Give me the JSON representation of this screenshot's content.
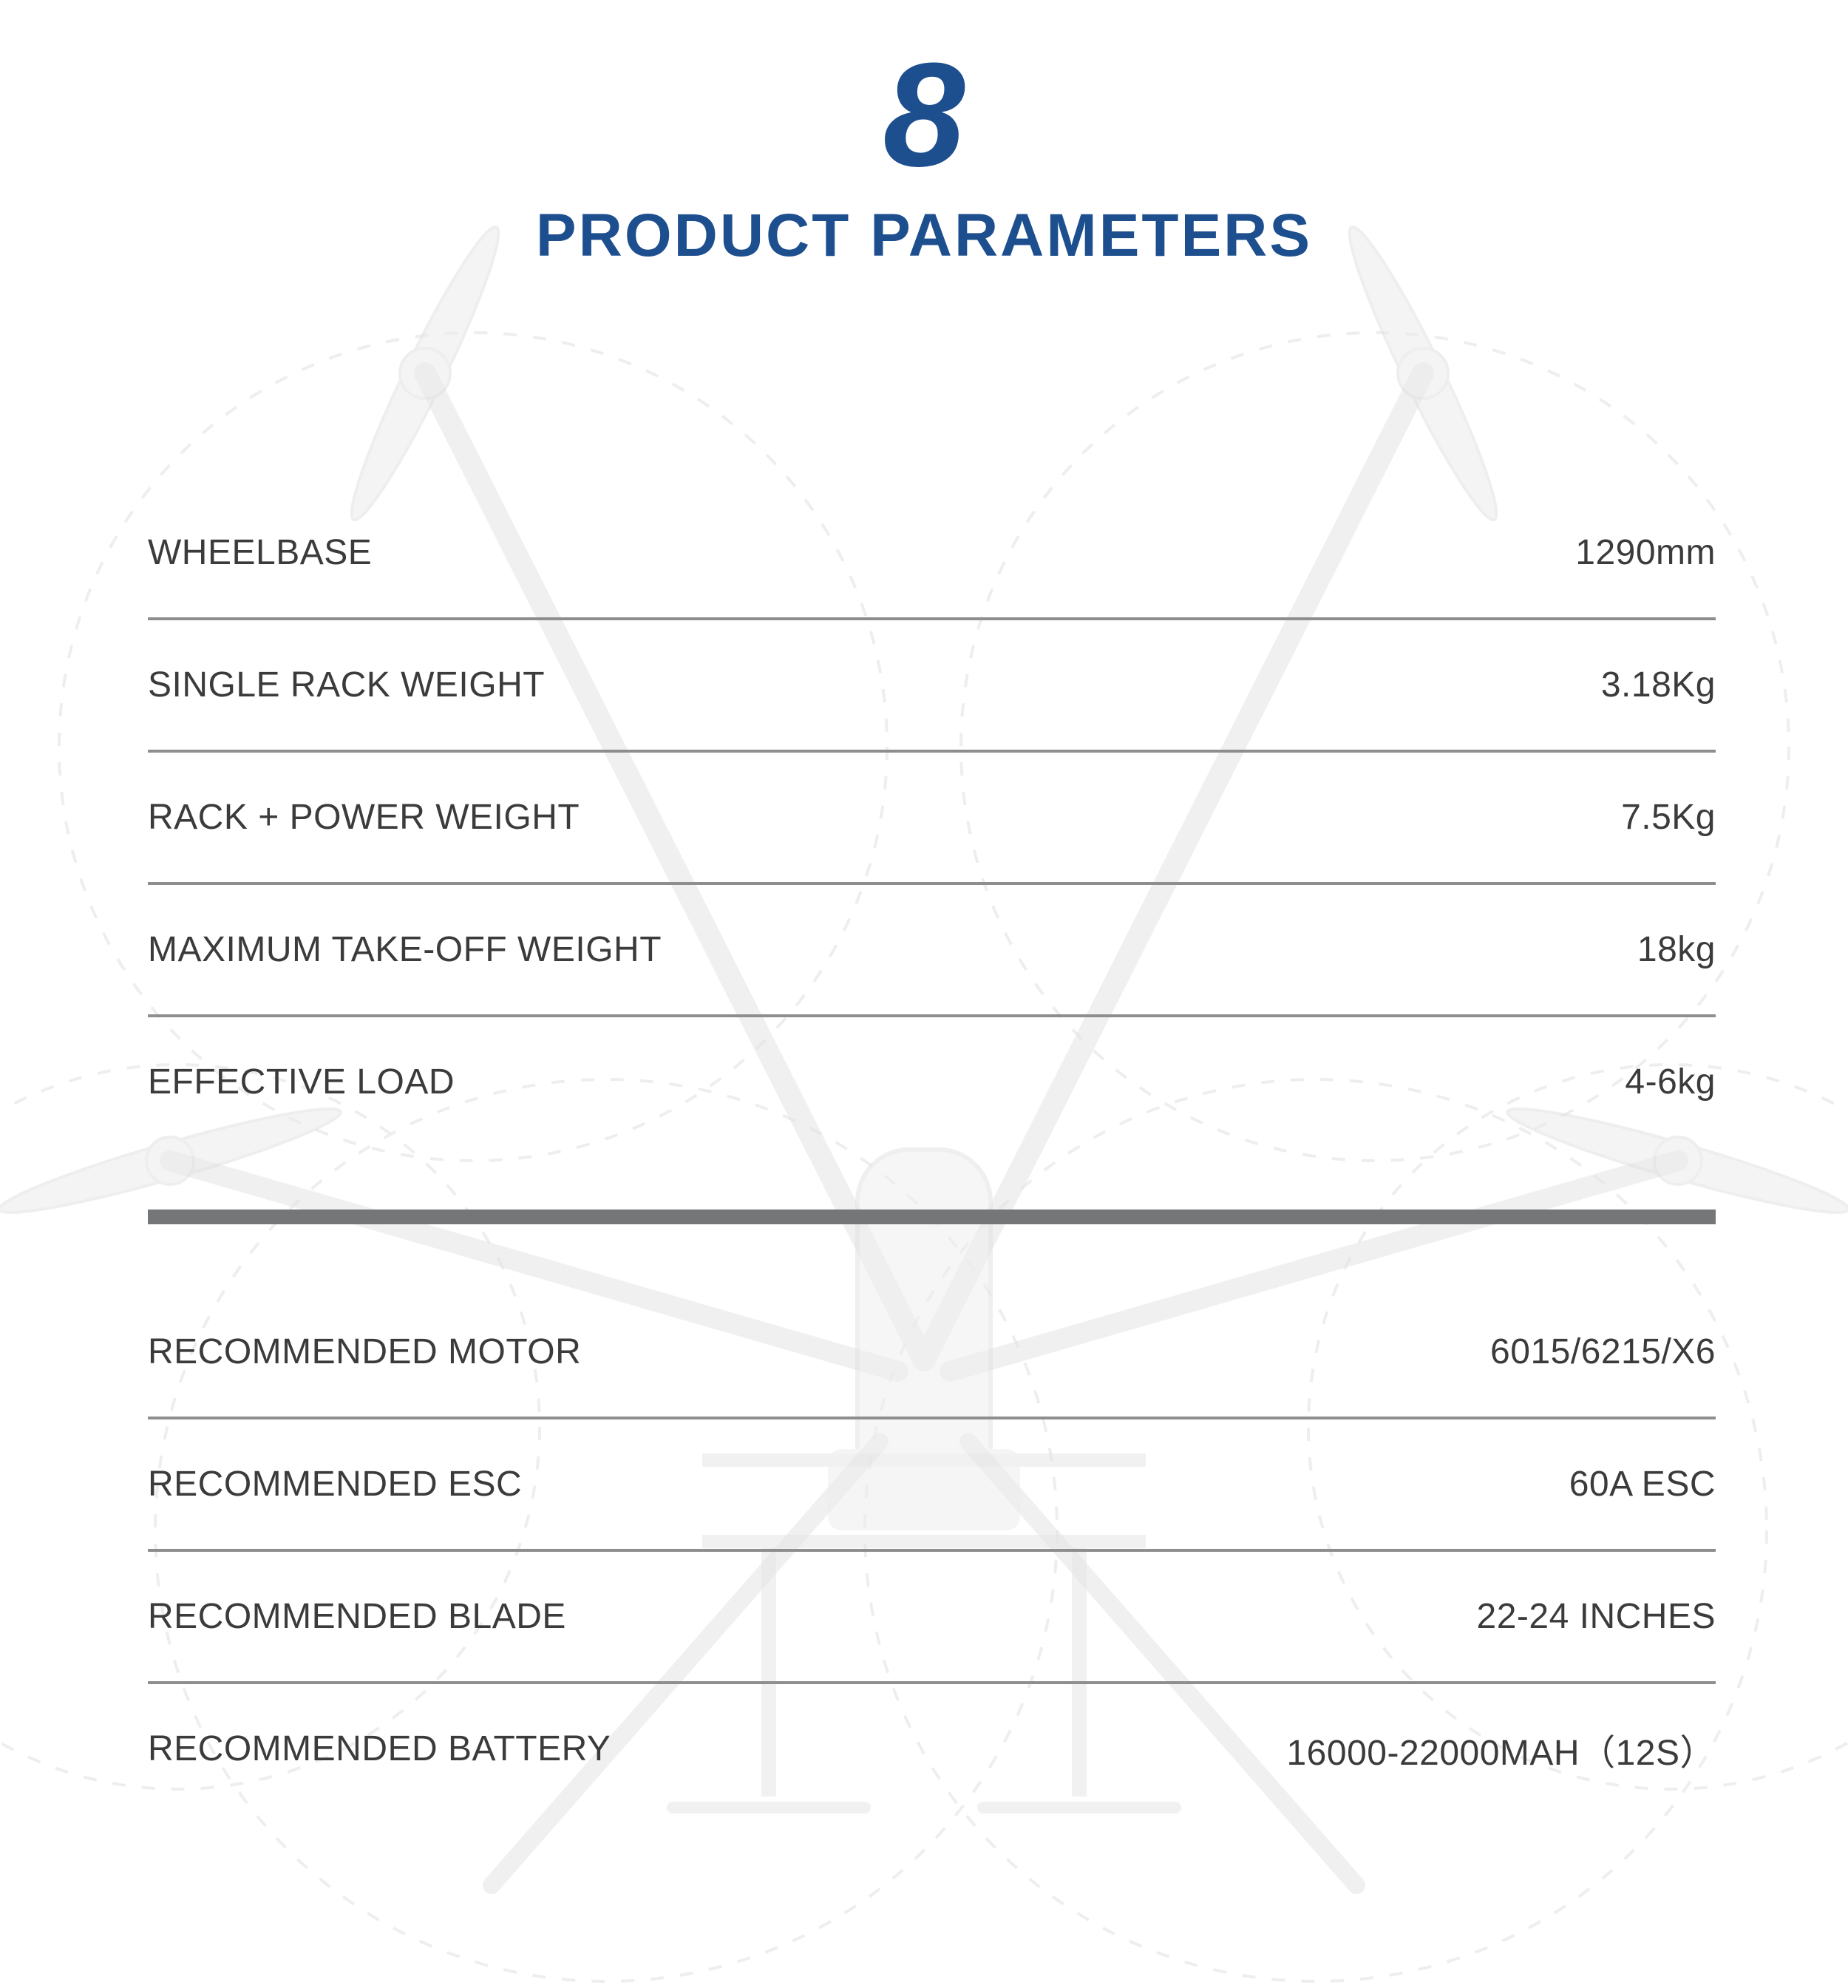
{
  "theme": {
    "accent_color": "#1d4f8f",
    "text_color": "#3b3b3c",
    "thin_line_color": "#8e8e8e",
    "thick_divider_color": "#747678",
    "background_color": "#ffffff"
  },
  "header": {
    "section_number": "8",
    "title": "PRODUCT PARAMETERS"
  },
  "spec_table": {
    "groups": [
      {
        "rows": [
          {
            "label": "WHEELBASE",
            "value": "1290mm"
          },
          {
            "label": "SINGLE RACK WEIGHT",
            "value": "3.18Kg"
          },
          {
            "label": "RACK + POWER WEIGHT",
            "value": "7.5Kg"
          },
          {
            "label": "MAXIMUM TAKE-OFF WEIGHT",
            "value": "18kg"
          },
          {
            "label": "EFFECTIVE LOAD",
            "value": "4-6kg"
          }
        ]
      },
      {
        "rows": [
          {
            "label": "RECOMMENDED MOTOR",
            "value": "6015/6215/X6"
          },
          {
            "label": "RECOMMENDED ESC",
            "value": "60A ESC"
          },
          {
            "label": "RECOMMENDED BLADE",
            "value": "22-24 INCHES"
          },
          {
            "label": "RECOMMENDED BATTERY",
            "value": "16000-22000MAH（12S）"
          }
        ]
      }
    ]
  },
  "watermark": {
    "type": "drone-frame-sketch"
  }
}
